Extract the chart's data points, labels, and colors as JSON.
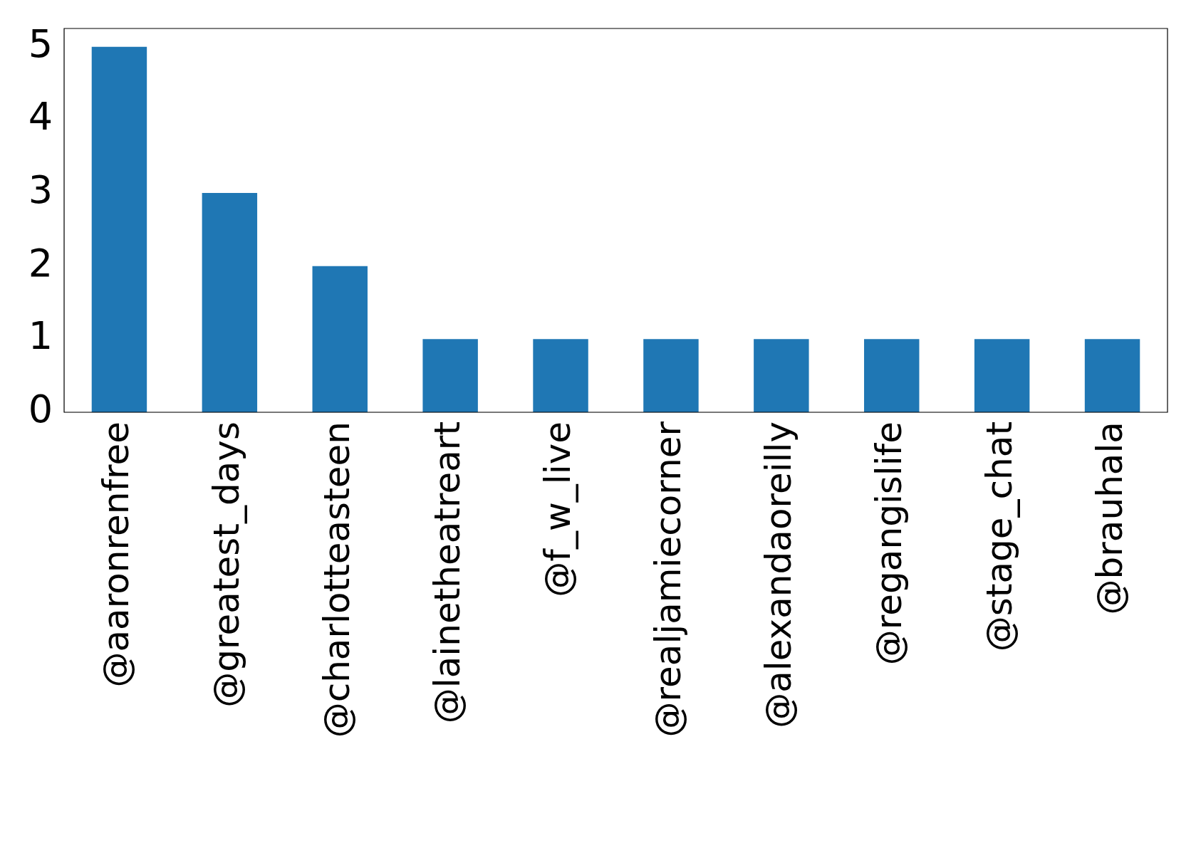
{
  "chart_data": {
    "type": "bar",
    "categories": [
      "@aaronrenfree",
      "@greatest_days",
      "@charlotteasteen",
      "@lainetheatreart",
      "@f_w_live",
      "@realjamiecorner",
      "@alexandaoreilly",
      "@regangislife",
      "@stage_chat",
      "@brauhala"
    ],
    "values": [
      5,
      3,
      2,
      1,
      1,
      1,
      1,
      1,
      1,
      1
    ],
    "color": "#1f77b4",
    "ylim": [
      0,
      5.25
    ],
    "yticks": [
      0,
      1,
      2,
      3,
      4,
      5
    ],
    "grid": false,
    "legend": false
  }
}
